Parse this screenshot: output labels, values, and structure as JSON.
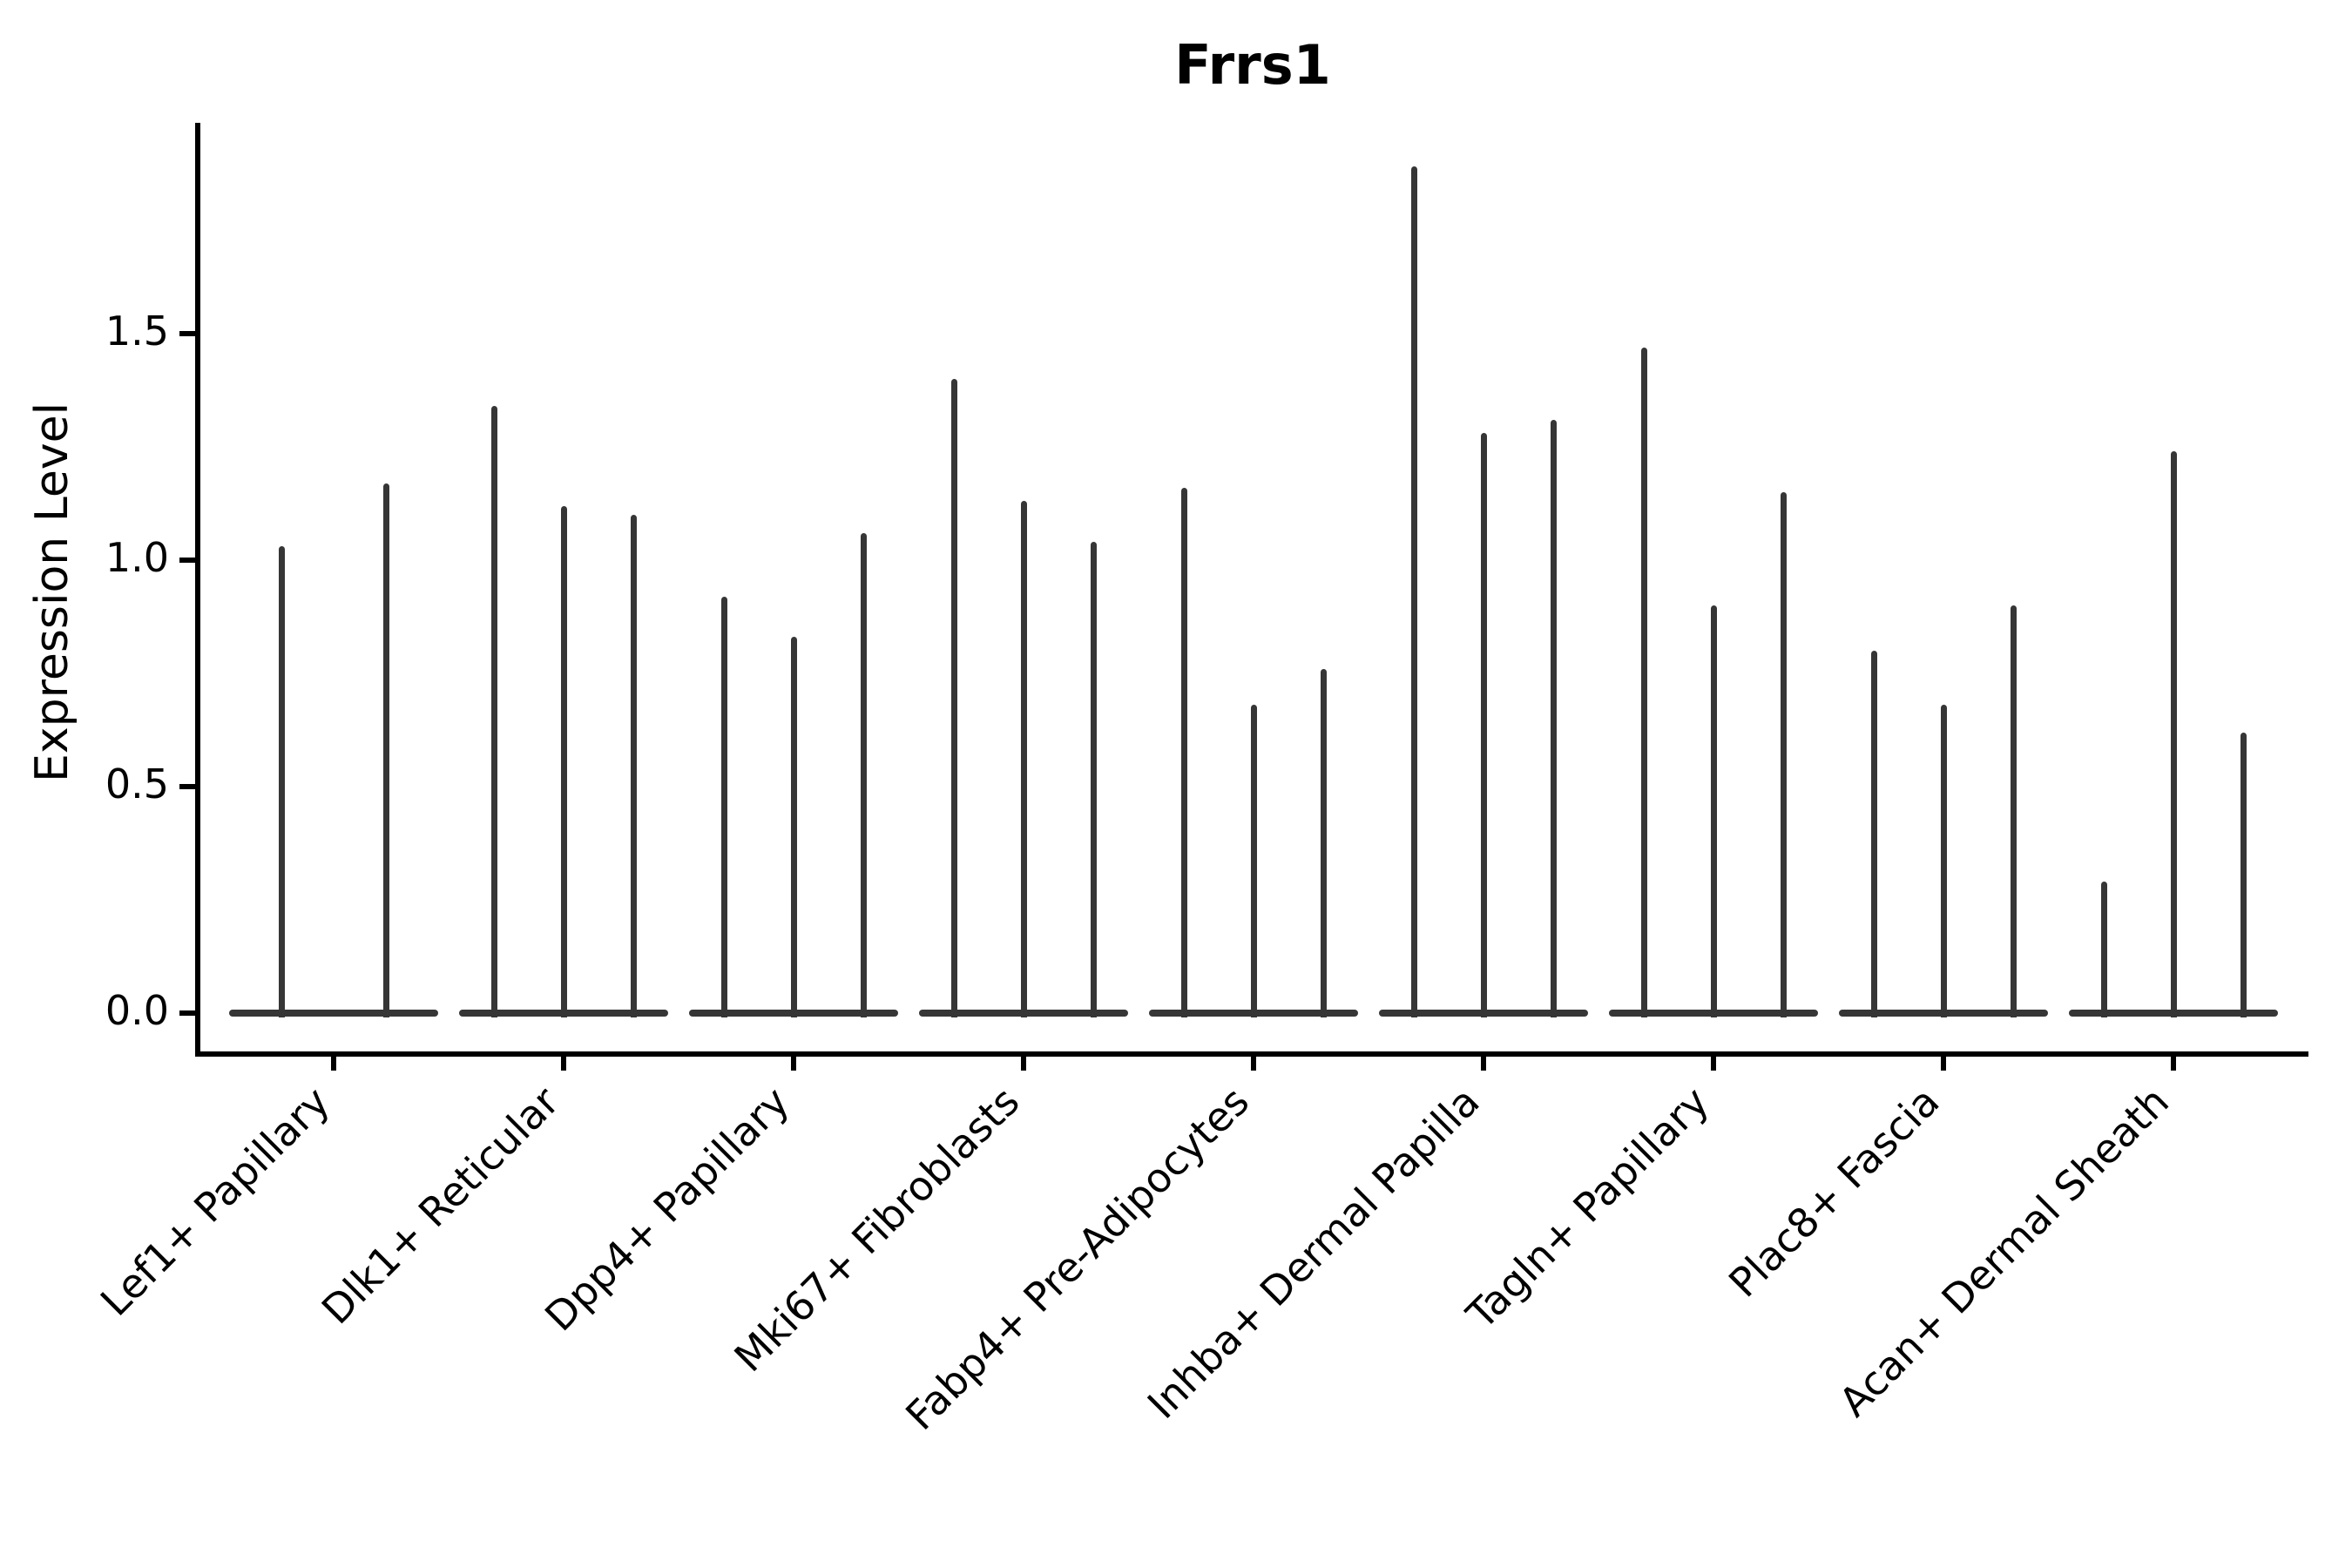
{
  "chart_data": {
    "type": "violin",
    "title": "Frrs1",
    "ylabel": "Expression Level",
    "xlabel": "",
    "ytick_labels": [
      "0.0",
      "0.5",
      "1.0",
      "1.5"
    ],
    "ytick_values": [
      0.0,
      0.5,
      1.0,
      1.5
    ],
    "ylim": [
      0.0,
      1.97
    ],
    "grid": "off",
    "legend": "none",
    "violin_color": "#363636",
    "axis_color": "#000000",
    "shape_note": "Each violin is degenerate: nearly all density lies at expression 0 (flat wide base) with a thin central spike reaching the maximum expression value.",
    "categories": [
      "Lef1+ Papillary",
      "Dlk1+ Reticular",
      "Dpp4+ Papillary",
      "Mki67+ Fibroblasts",
      "Fabp4+ Pre-Adipocytes",
      "Inhba+ Dermal Papilla",
      "Tagln+ Papillary",
      "Plac8+ Fascia",
      "Acan+ Dermal Sheath"
    ],
    "groups": [
      {
        "label": "Lef1+ Papillary",
        "spike_max_values": [
          1.03,
          1.17
        ]
      },
      {
        "label": "Dlk1+ Reticular",
        "spike_max_values": [
          1.34,
          1.12,
          1.1
        ]
      },
      {
        "label": "Dpp4+ Papillary",
        "spike_max_values": [
          0.92,
          0.83,
          1.06
        ]
      },
      {
        "label": "Mki67+ Fibroblasts",
        "spike_max_values": [
          1.4,
          1.13,
          1.04
        ]
      },
      {
        "label": "Fabp4+ Pre-Adipocytes",
        "spike_max_values": [
          1.16,
          0.68,
          0.76
        ]
      },
      {
        "label": "Inhba+ Dermal Papilla",
        "spike_max_values": [
          1.87,
          1.28,
          1.31
        ]
      },
      {
        "label": "Tagln+ Papillary",
        "spike_max_values": [
          1.47,
          0.9,
          1.15
        ]
      },
      {
        "label": "Plac8+ Fascia",
        "spike_max_values": [
          0.8,
          0.68,
          0.9
        ]
      },
      {
        "label": "Acan+ Dermal Sheath",
        "spike_max_values": [
          0.29,
          1.24,
          0.62
        ]
      }
    ]
  }
}
